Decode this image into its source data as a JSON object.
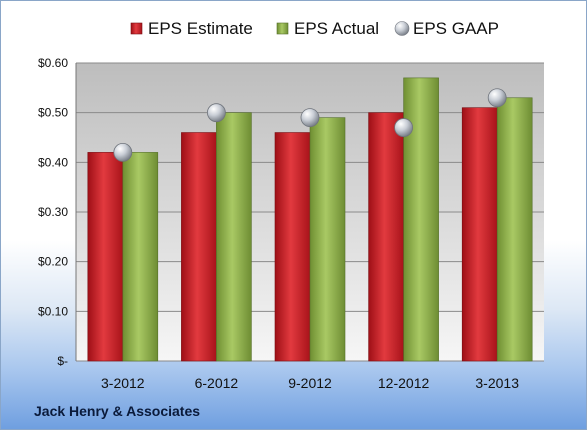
{
  "company": "Jack Henry & Associates",
  "colors": {
    "estimate": "#cc1f26",
    "actual": "#8fb34b",
    "gaap": "#b9bfc8",
    "plot_top": "#bdbdbd",
    "plot_bottom": "#f6f6f6",
    "grid": "#8a8a8a"
  },
  "chart_data": {
    "type": "bar",
    "title": "",
    "xlabel": "",
    "ylabel": "",
    "categories": [
      "3-2012",
      "6-2012",
      "9-2012",
      "12-2012",
      "3-2013"
    ],
    "series": [
      {
        "name": "EPS Estimate",
        "kind": "bar",
        "values": [
          0.42,
          0.46,
          0.46,
          0.5,
          0.51
        ]
      },
      {
        "name": "EPS Actual",
        "kind": "bar",
        "values": [
          0.42,
          0.5,
          0.49,
          0.57,
          0.53
        ]
      },
      {
        "name": "EPS GAAP",
        "kind": "marker",
        "values": [
          0.42,
          0.5,
          0.49,
          0.47,
          0.53
        ]
      }
    ],
    "ylim": [
      0,
      0.6
    ],
    "yticks": [
      0,
      0.1,
      0.2,
      0.3,
      0.4,
      0.5,
      0.6
    ],
    "ytick_labels": [
      "$-",
      "$0.10",
      "$0.20",
      "$0.30",
      "$0.40",
      "$0.50",
      "$0.60"
    ],
    "grid": true,
    "legend_position": "top"
  }
}
